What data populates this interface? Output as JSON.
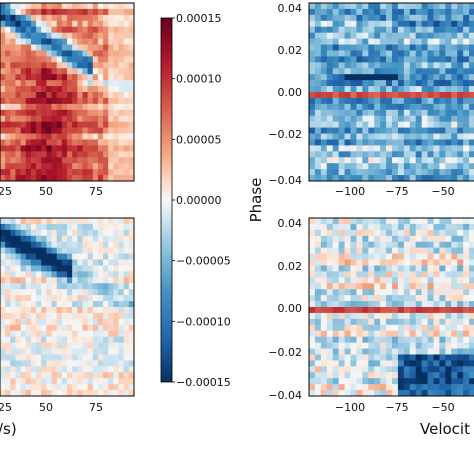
{
  "chart_data": [
    {
      "type": "heatmap",
      "panel": "left-top",
      "x_ticks": [
        "25",
        "50",
        "75"
      ],
      "pattern": "red-dominant",
      "description_mode": "residual map"
    },
    {
      "type": "heatmap",
      "panel": "left-bottom",
      "x_ticks": [
        "25",
        "50",
        "75"
      ],
      "xlabel_fragment": "/s)",
      "pattern": "mostly-faint"
    },
    {
      "type": "colorbar",
      "ticks": [
        "0.00015",
        "0.00010",
        "0.00005",
        "0.00000",
        "−0.00005",
        "−0.00010",
        "−0.00015"
      ],
      "vmin": -0.00015,
      "vmax": 0.00015,
      "colormap": "RdBu_r"
    },
    {
      "type": "heatmap",
      "panel": "right-top",
      "ylabel": "Phase",
      "y_ticks": [
        "0.04",
        "0.02",
        "0.00",
        "−0.02",
        "−0.04"
      ],
      "x_ticks": [
        "−100",
        "−75",
        "−50"
      ],
      "ylim": [
        -0.04,
        0.04
      ],
      "pattern": "blue-dominant"
    },
    {
      "type": "heatmap",
      "panel": "right-bottom",
      "y_ticks": [
        "0.04",
        "0.02",
        "0.00",
        "−0.02",
        "−0.04"
      ],
      "x_ticks": [
        "−100",
        "−75",
        "−50"
      ],
      "xlabel_fragment": "Velocit",
      "ylim": [
        -0.04,
        0.04
      ],
      "pattern": "faint-with-blue-bottom"
    }
  ],
  "colors": {
    "max_red": "#67001f",
    "mid_white": "#f7f7f7",
    "max_blue": "#053061"
  }
}
